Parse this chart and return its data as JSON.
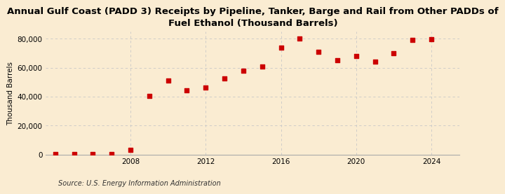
{
  "title": "Annual Gulf Coast (PADD 3) Receipts by Pipeline, Tanker, Barge and Rail from Other PADDs of\nFuel Ethanol (Thousand Barrels)",
  "ylabel": "Thousand Barrels",
  "source": "Source: U.S. Energy Information Administration",
  "background_color": "#faecd2",
  "plot_background_color": "#faecd2",
  "marker_color": "#cc0000",
  "years": [
    2004,
    2005,
    2006,
    2007,
    2008,
    2009,
    2010,
    2011,
    2012,
    2013,
    2014,
    2015,
    2016,
    2017,
    2018,
    2019,
    2020,
    2021,
    2022,
    2023,
    2024
  ],
  "values": [
    200,
    500,
    300,
    100,
    3200,
    40500,
    51000,
    44500,
    46500,
    52500,
    58000,
    61000,
    74000,
    80000,
    71000,
    65000,
    68000,
    64000,
    70000,
    79000,
    79500
  ],
  "ylim": [
    0,
    85000
  ],
  "yticks": [
    0,
    20000,
    40000,
    60000,
    80000
  ],
  "xlim": [
    2003.5,
    2025.5
  ],
  "xticks": [
    2008,
    2012,
    2016,
    2020,
    2024
  ],
  "grid_color": "#c8c8c8",
  "title_fontsize": 9.5,
  "axis_fontsize": 7.5,
  "tick_fontsize": 7.5,
  "source_fontsize": 7
}
